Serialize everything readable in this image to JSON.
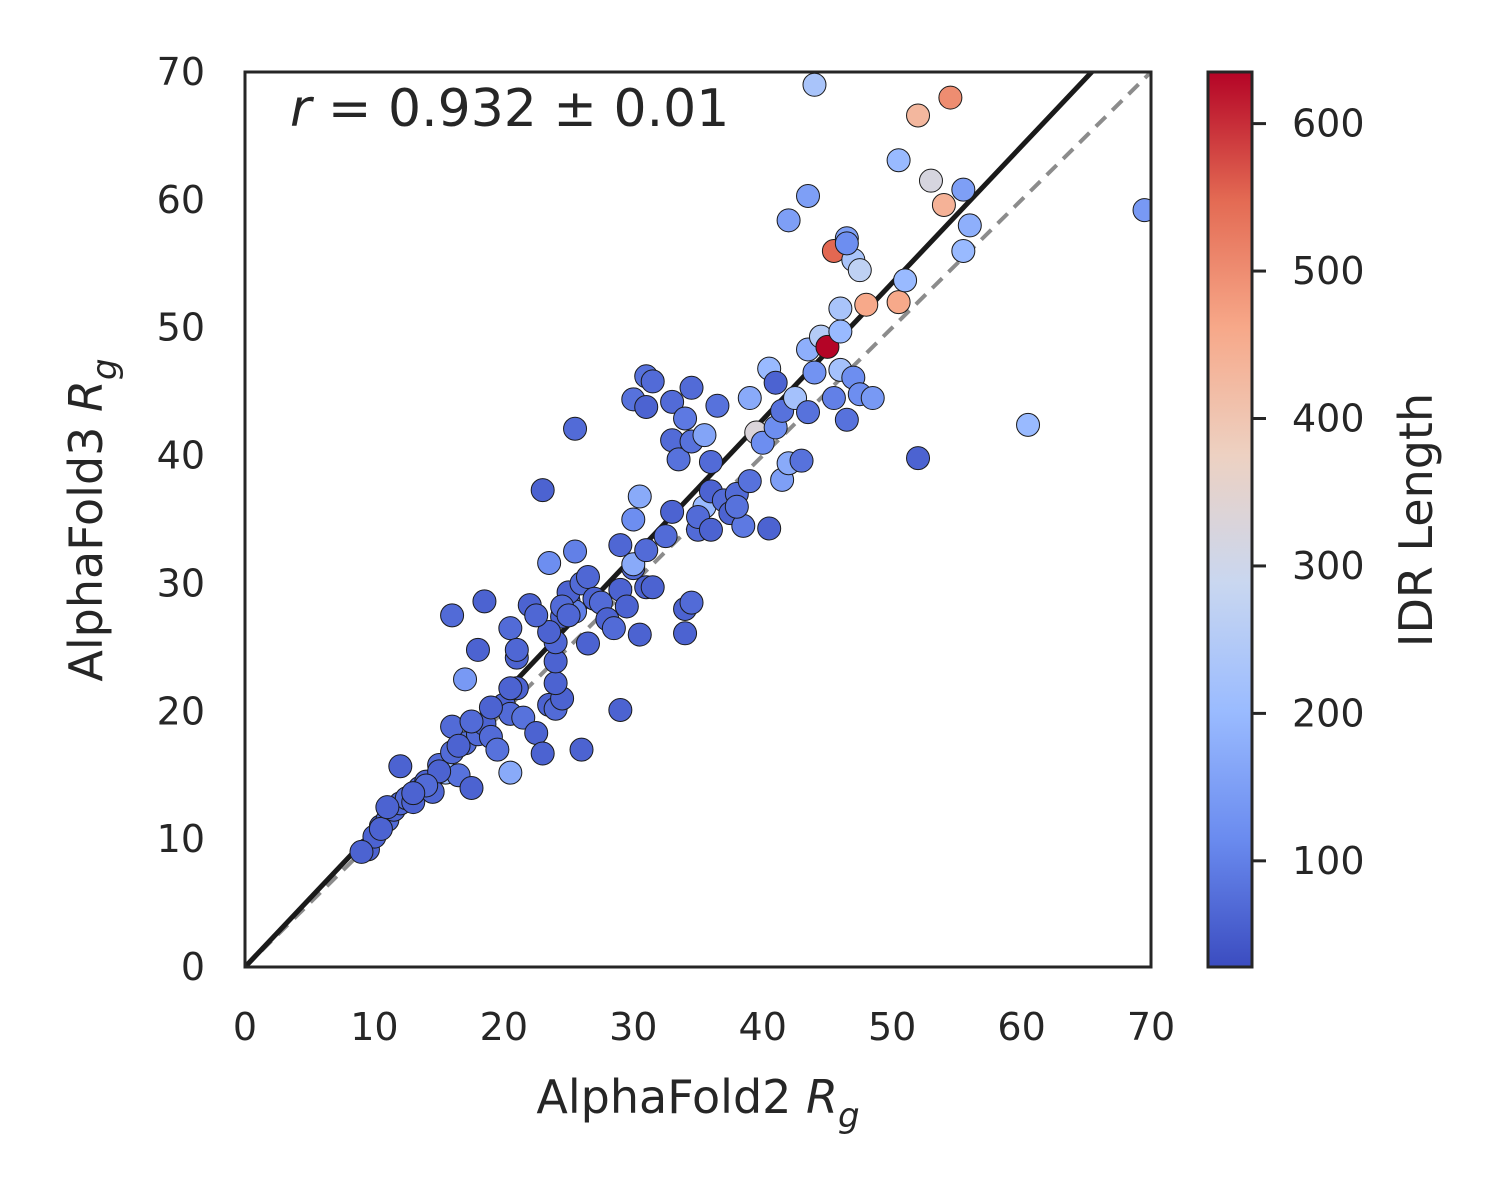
{
  "chart_data": {
    "type": "scatter",
    "xlabel": "AlphaFold2",
    "xlabel_sub": "R",
    "xlabel_subscript": "g",
    "ylabel": "AlphaFold3",
    "ylabel_sub": "R",
    "ylabel_subscript": "g",
    "annotation": {
      "var": "r",
      "text": " = 0.932 ± 0.01"
    },
    "xlim": [
      0,
      70
    ],
    "ylim": [
      0,
      70
    ],
    "xticks": [
      0,
      10,
      20,
      30,
      40,
      50,
      60,
      70
    ],
    "yticks": [
      0,
      10,
      20,
      30,
      40,
      50,
      60,
      70
    ],
    "grid": false,
    "colorbar": {
      "label": "IDR Length",
      "range": [
        28,
        635
      ],
      "ticks": [
        100,
        200,
        300,
        400,
        500,
        600
      ],
      "colormap": "coolwarm",
      "colors": [
        "#3b4cc0",
        "#6a8bef",
        "#9abbff",
        "#c9d7f0",
        "#edd1c2",
        "#f7a889",
        "#e36a53",
        "#b40426"
      ]
    },
    "fit_line": {
      "color": "#1a1a1a",
      "slope": 1.07,
      "intercept": 0,
      "style": "solid"
    },
    "identity_line": {
      "color": "#8c8c8c",
      "style": "dashed"
    },
    "points": [
      [
        9.5,
        9.2,
        60
      ],
      [
        10,
        10.2,
        60
      ],
      [
        10.5,
        11,
        65
      ],
      [
        11,
        11.5,
        70
      ],
      [
        11.5,
        12.3,
        60
      ],
      [
        12,
        12.8,
        65
      ],
      [
        12.5,
        13.2,
        70
      ],
      [
        13,
        12.9,
        60
      ],
      [
        13.5,
        14,
        70
      ],
      [
        14,
        14.5,
        60
      ],
      [
        14.5,
        13.7,
        65
      ],
      [
        15,
        15.8,
        70
      ],
      [
        15.5,
        15.2,
        200
      ],
      [
        16,
        16.8,
        70
      ],
      [
        16.5,
        15,
        80
      ],
      [
        17,
        17.5,
        75
      ],
      [
        17.5,
        14,
        60
      ],
      [
        18,
        18.2,
        70
      ],
      [
        18.5,
        19,
        60
      ],
      [
        19,
        18,
        70
      ],
      [
        19.5,
        17,
        80
      ],
      [
        20,
        20.5,
        60
      ],
      [
        20.5,
        19.8,
        70
      ],
      [
        21,
        21.8,
        60
      ],
      [
        21.5,
        19.5,
        80
      ],
      [
        20.5,
        15.2,
        170
      ],
      [
        10.5,
        10.8,
        60
      ],
      [
        12,
        15.7,
        60
      ],
      [
        16,
        18.8,
        70
      ],
      [
        16.5,
        17.3,
        60
      ],
      [
        17,
        22.5,
        140
      ],
      [
        18,
        24.8,
        60
      ],
      [
        16,
        27.5,
        70
      ],
      [
        18.5,
        28.6,
        60
      ],
      [
        20.5,
        26.5,
        70
      ],
      [
        21,
        24.2,
        60
      ],
      [
        21,
        24.8,
        65
      ],
      [
        22,
        28.3,
        60
      ],
      [
        22.5,
        18.3,
        60
      ],
      [
        23,
        16.7,
        60
      ],
      [
        23.5,
        20.5,
        60
      ],
      [
        24,
        20.2,
        70
      ],
      [
        24.5,
        21,
        60
      ],
      [
        24,
        22.2,
        60
      ],
      [
        24,
        23.9,
        60
      ],
      [
        24,
        25.4,
        65
      ],
      [
        24.5,
        27.4,
        60
      ],
      [
        25,
        28.6,
        70
      ],
      [
        25.5,
        27.8,
        100
      ],
      [
        25,
        29.3,
        60
      ],
      [
        26,
        30,
        70
      ],
      [
        26.5,
        30.5,
        65
      ],
      [
        27,
        28.8,
        60
      ],
      [
        27.5,
        28.5,
        70
      ],
      [
        28,
        27.2,
        60
      ],
      [
        28.5,
        26.5,
        70
      ],
      [
        29,
        29.5,
        60
      ],
      [
        29,
        33,
        65
      ],
      [
        29.5,
        28.2,
        60
      ],
      [
        30,
        31.2,
        70
      ],
      [
        30.5,
        26,
        60
      ],
      [
        30,
        31.5,
        170
      ],
      [
        31,
        29.7,
        60
      ],
      [
        31,
        32.6,
        70
      ],
      [
        31.5,
        29.7,
        60
      ],
      [
        23,
        37.3,
        60
      ],
      [
        23.5,
        31.6,
        120
      ],
      [
        25.5,
        42.1,
        70
      ],
      [
        25.5,
        32.5,
        100
      ],
      [
        26.5,
        25.3,
        60
      ],
      [
        26,
        17,
        60
      ],
      [
        29,
        20.1,
        60
      ],
      [
        30,
        35,
        120
      ],
      [
        30.5,
        36.8,
        170
      ],
      [
        30,
        44.4,
        80
      ],
      [
        31,
        46.2,
        80
      ],
      [
        31,
        43.8,
        60
      ],
      [
        31.5,
        45.8,
        70
      ],
      [
        32.5,
        33.7,
        70
      ],
      [
        33,
        35.6,
        60
      ],
      [
        33,
        41.2,
        70
      ],
      [
        33.5,
        39.7,
        80
      ],
      [
        33,
        44.2,
        70
      ],
      [
        34,
        42.9,
        90
      ],
      [
        34.5,
        41.1,
        80
      ],
      [
        34.5,
        45.3,
        70
      ],
      [
        34,
        28,
        60
      ],
      [
        34,
        26.1,
        60
      ],
      [
        34.5,
        28.5,
        70
      ],
      [
        35,
        34.2,
        70
      ],
      [
        35.5,
        36,
        200
      ],
      [
        35.5,
        41.6,
        160
      ],
      [
        36,
        39.5,
        70
      ],
      [
        36.5,
        43.9,
        80
      ],
      [
        36,
        37.2,
        60
      ],
      [
        37,
        36.5,
        70
      ],
      [
        37.5,
        35.5,
        60
      ],
      [
        38,
        37,
        70
      ],
      [
        38.5,
        34.5,
        90
      ],
      [
        39,
        44.5,
        170
      ],
      [
        39.5,
        41.8,
        330
      ],
      [
        40,
        41,
        120
      ],
      [
        40.5,
        46.8,
        200
      ],
      [
        41,
        45.7,
        60
      ],
      [
        41,
        42.2,
        120
      ],
      [
        41.5,
        43.5,
        80
      ],
      [
        41.5,
        38.1,
        150
      ],
      [
        42,
        39.4,
        170
      ],
      [
        42,
        58.4,
        150
      ],
      [
        42.5,
        44.5,
        220
      ],
      [
        43,
        39.6,
        80
      ],
      [
        43.5,
        43.4,
        80
      ],
      [
        43.5,
        48.3,
        180
      ],
      [
        44,
        46.5,
        130
      ],
      [
        43.5,
        60.3,
        150
      ],
      [
        44,
        69,
        230
      ],
      [
        44.5,
        49.3,
        250
      ],
      [
        45,
        48.5,
        635
      ],
      [
        45.5,
        44.5,
        100
      ],
      [
        45.5,
        56,
        550
      ],
      [
        46,
        46.7,
        220
      ],
      [
        46,
        49.7,
        200
      ],
      [
        46.5,
        42.8,
        80
      ],
      [
        46,
        51.5,
        230
      ],
      [
        46.5,
        57,
        150
      ],
      [
        47,
        55.3,
        230
      ],
      [
        47,
        46.1,
        120
      ],
      [
        47.5,
        54.5,
        270
      ],
      [
        47.5,
        44.8,
        120
      ],
      [
        48,
        51.8,
        460
      ],
      [
        48.5,
        44.5,
        140
      ],
      [
        50.5,
        63.1,
        200
      ],
      [
        50.5,
        52,
        460
      ],
      [
        51,
        53.7,
        200
      ],
      [
        52,
        66.6,
        430
      ],
      [
        52,
        39.8,
        60
      ],
      [
        53,
        61.5,
        320
      ],
      [
        54,
        59.6,
        440
      ],
      [
        54.5,
        68,
        500
      ],
      [
        55.5,
        60.8,
        150
      ],
      [
        55.5,
        56,
        200
      ],
      [
        56,
        58,
        180
      ],
      [
        60.5,
        42.4,
        200
      ],
      [
        69.5,
        59.2,
        140
      ],
      [
        35,
        35.2,
        70
      ],
      [
        36,
        34.2,
        60
      ],
      [
        38,
        36,
        80
      ],
      [
        39,
        38,
        80
      ],
      [
        40.5,
        34.3,
        60
      ],
      [
        46.5,
        56.6,
        120
      ],
      [
        23.5,
        26.2,
        60
      ],
      [
        22.5,
        27.5,
        65
      ],
      [
        20.5,
        21.8,
        60
      ],
      [
        19,
        20.3,
        60
      ],
      [
        17.5,
        19.2,
        70
      ],
      [
        15,
        15.3,
        60
      ],
      [
        14,
        14.2,
        70
      ],
      [
        13,
        13.6,
        60
      ],
      [
        11,
        12.5,
        60
      ],
      [
        9,
        9,
        60
      ],
      [
        24.5,
        28.2,
        70
      ],
      [
        25,
        27.5,
        65
      ]
    ]
  }
}
